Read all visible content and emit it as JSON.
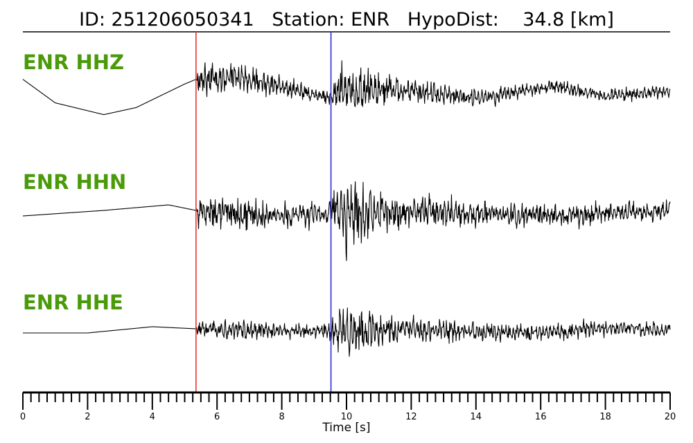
{
  "header": {
    "id_label": "ID:",
    "id_value": "251206050341",
    "station_label": "Station:",
    "station_value": "ENR",
    "hypodist_label": "HypoDist:",
    "hypodist_value": "34.8",
    "hypodist_unit": "[km]"
  },
  "colors": {
    "label": "#4a9a0a",
    "p_pick": "#e8322d",
    "s_pick": "#2b2bd0",
    "trace": "#000000"
  },
  "chart_data": {
    "type": "line",
    "title": "ID: 251206050341   Station: ENR   HypoDist:    34.8 [km]",
    "xlabel": "Time [s]",
    "xlim": [
      0,
      20
    ],
    "x_major_ticks": [
      0,
      2,
      4,
      6,
      8,
      10,
      12,
      14,
      16,
      18,
      20
    ],
    "x_minor_step": 0.25,
    "picks": [
      {
        "name": "P",
        "time": 5.35,
        "color": "#e8322d"
      },
      {
        "name": "S",
        "time": 9.52,
        "color": "#2b2bd0"
      }
    ],
    "series": [
      {
        "name": "ENR HHZ",
        "noise": [
          [
            0,
            0
          ],
          [
            5.35,
            0
          ],
          [
            5.4,
            0.55
          ],
          [
            6.0,
            0.5
          ],
          [
            7.0,
            0.4
          ],
          [
            8.0,
            0.32
          ],
          [
            9.3,
            0.22
          ],
          [
            9.55,
            0.3
          ],
          [
            9.9,
            1.0
          ],
          [
            10.3,
            0.75
          ],
          [
            11.0,
            0.5
          ],
          [
            12.0,
            0.38
          ],
          [
            14.0,
            0.28
          ],
          [
            16.0,
            0.22
          ],
          [
            18.0,
            0.2
          ],
          [
            20.0,
            0.18
          ]
        ],
        "drift": [
          [
            0,
            0.3
          ],
          [
            1.0,
            -0.2
          ],
          [
            2.5,
            -0.45
          ],
          [
            3.5,
            -0.3
          ],
          [
            5.0,
            0.2
          ],
          [
            5.35,
            0.3
          ],
          [
            6.5,
            0.35
          ],
          [
            8.0,
            0.15
          ],
          [
            9.5,
            -0.1
          ],
          [
            10.0,
            0.1
          ],
          [
            12.0,
            0.05
          ],
          [
            14.0,
            -0.1
          ],
          [
            16.5,
            0.15
          ],
          [
            18.0,
            -0.05
          ],
          [
            20.0,
            0.05
          ]
        ]
      },
      {
        "name": "ENR HHN",
        "noise": [
          [
            0,
            0
          ],
          [
            5.35,
            0
          ],
          [
            5.4,
            0.35
          ],
          [
            6.5,
            0.5
          ],
          [
            7.5,
            0.35
          ],
          [
            9.3,
            0.3
          ],
          [
            9.5,
            0.5
          ],
          [
            10.0,
            1.0
          ],
          [
            10.5,
            0.8
          ],
          [
            11.0,
            0.55
          ],
          [
            12.0,
            0.45
          ],
          [
            14.0,
            0.35
          ],
          [
            16.0,
            0.3
          ],
          [
            18.0,
            0.28
          ],
          [
            20.0,
            0.25
          ]
        ],
        "drift": [
          [
            0,
            -0.05
          ],
          [
            2.5,
            0.05
          ],
          [
            4.5,
            0.15
          ],
          [
            5.35,
            0.05
          ],
          [
            7.0,
            -0.05
          ],
          [
            9.5,
            0.0
          ],
          [
            12.0,
            0.03
          ],
          [
            16.0,
            -0.05
          ],
          [
            20.0,
            0.05
          ]
        ]
      },
      {
        "name": "ENR HHE",
        "noise": [
          [
            0,
            0
          ],
          [
            5.35,
            0
          ],
          [
            5.4,
            0.3
          ],
          [
            6.5,
            0.35
          ],
          [
            8.0,
            0.25
          ],
          [
            9.4,
            0.25
          ],
          [
            9.6,
            0.6
          ],
          [
            10.0,
            1.0
          ],
          [
            10.6,
            0.75
          ],
          [
            11.5,
            0.55
          ],
          [
            13.0,
            0.4
          ],
          [
            15.0,
            0.32
          ],
          [
            18.0,
            0.3
          ],
          [
            20.0,
            0.25
          ]
        ],
        "drift": [
          [
            0,
            -0.05
          ],
          [
            2.0,
            -0.05
          ],
          [
            4.0,
            0.1
          ],
          [
            5.35,
            0.05
          ],
          [
            8.0,
            0.0
          ],
          [
            12.0,
            0.0
          ],
          [
            16.0,
            -0.05
          ],
          [
            18.5,
            0.08
          ],
          [
            20.0,
            0.0
          ]
        ]
      }
    ]
  }
}
